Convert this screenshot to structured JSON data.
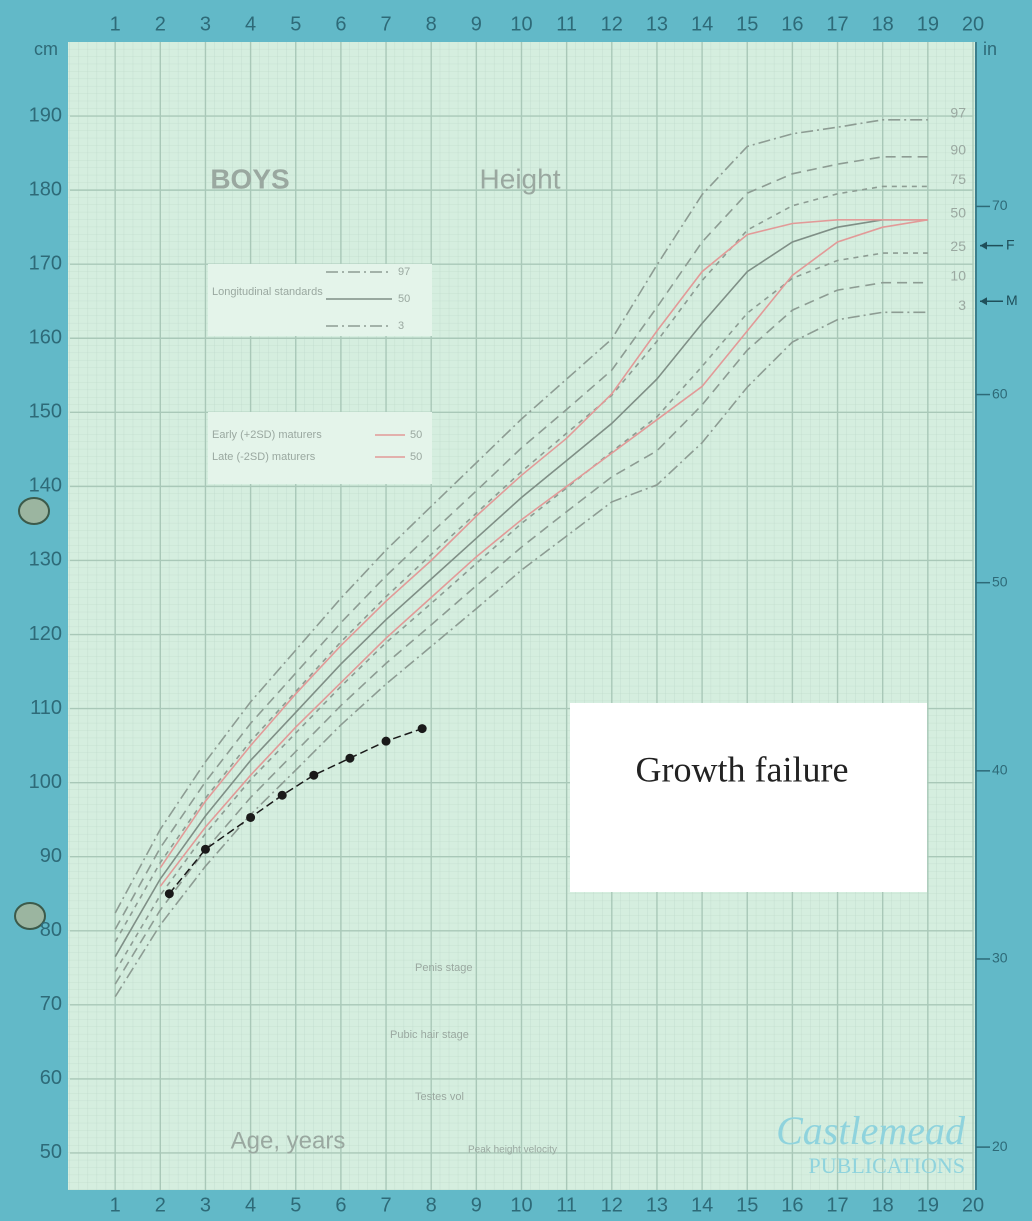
{
  "chart_data": {
    "type": "line",
    "title": "Height",
    "subtitle": "BOYS",
    "x_label": "Age, years",
    "y_label": "cm",
    "y2_label": "in",
    "xlim": [
      0,
      20
    ],
    "xticks": [
      1,
      2,
      3,
      4,
      5,
      6,
      7,
      8,
      9,
      10,
      11,
      12,
      13,
      14,
      15,
      16,
      17,
      18,
      19,
      20
    ],
    "ylim": [
      45,
      200
    ],
    "yticks": [
      50,
      60,
      70,
      80,
      90,
      100,
      110,
      120,
      130,
      140,
      150,
      160,
      170,
      180,
      190
    ],
    "y2lim": [
      17.72,
      78.74
    ],
    "y2ticks": [
      20,
      30,
      40,
      50,
      60,
      70
    ],
    "grid": true,
    "x": [
      1,
      2,
      3,
      4,
      5,
      6,
      7,
      8,
      9,
      10,
      11,
      12,
      13,
      14,
      15,
      16,
      17,
      18,
      19
    ],
    "series": [
      {
        "name": "97",
        "color": "#8d9c93",
        "dash": "dashdot",
        "values": [
          82.4,
          93.7,
          102.8,
          110.9,
          117.9,
          124.9,
          131.4,
          137.3,
          143.2,
          149.1,
          154.5,
          159.9,
          169.9,
          179.4,
          185.9,
          187.6,
          188.5,
          189.5,
          189.5
        ]
      },
      {
        "name": "90",
        "color": "#8d9c93",
        "dash": "dashed",
        "values": [
          80.2,
          91.2,
          100.1,
          108.0,
          114.8,
          121.6,
          127.9,
          133.7,
          139.4,
          145.2,
          150.4,
          155.7,
          164.2,
          173.0,
          179.6,
          182.2,
          183.5,
          184.5,
          184.5
        ]
      },
      {
        "name": "75",
        "color": "#8d9c93",
        "dash": "short",
        "values": [
          78.5,
          89.2,
          97.9,
          105.6,
          112.3,
          119.0,
          125.1,
          130.8,
          136.4,
          142.0,
          147.2,
          152.3,
          159.6,
          167.8,
          174.6,
          177.9,
          179.5,
          180.5,
          180.5
        ]
      },
      {
        "name": "50",
        "color": "#7f8f86",
        "dash": "solid",
        "values": [
          76.5,
          87,
          95.5,
          103,
          109.5,
          116,
          122,
          127.5,
          133,
          138.5,
          143.5,
          148.5,
          154.5,
          162,
          169,
          173,
          175,
          176,
          176
        ]
      },
      {
        "name": "25",
        "color": "#8d9c93",
        "dash": "short",
        "values": [
          74.5,
          84.8,
          93.1,
          100.4,
          106.7,
          113.0,
          118.9,
          124.2,
          129.6,
          135.0,
          139.8,
          144.7,
          149.4,
          156.2,
          163.4,
          168.1,
          170.5,
          171.5,
          171.5
        ]
      },
      {
        "name": "10",
        "color": "#8d9c93",
        "dash": "dashed",
        "values": [
          72.8,
          82.8,
          90.9,
          98.0,
          104.2,
          110.4,
          116.1,
          121.3,
          126.6,
          131.8,
          136.6,
          141.3,
          144.8,
          151.0,
          158.4,
          163.8,
          166.5,
          167.5,
          167.5
        ]
      },
      {
        "name": "3",
        "color": "#8d9c93",
        "dash": "dashdot",
        "values": [
          71.1,
          80.8,
          88.7,
          95.7,
          101.7,
          107.8,
          113.3,
          118.4,
          123.5,
          128.7,
          133.3,
          137.9,
          140.2,
          145.9,
          153.4,
          159.5,
          162.5,
          163.5,
          163.5
        ]
      },
      {
        "name": "Early (+2SD) maturers",
        "color": "#e29a98",
        "dash": "solid",
        "values": [
          null,
          88.5,
          97.5,
          105,
          112,
          118.5,
          124.5,
          130,
          136,
          141.5,
          146.5,
          152.5,
          161,
          169,
          174,
          175.5,
          176,
          176,
          176
        ]
      },
      {
        "name": "Late (-2SD) maturers",
        "color": "#e29a98",
        "dash": "solid",
        "values": [
          null,
          86,
          94,
          101,
          107.5,
          113.5,
          119.5,
          125,
          130.5,
          135.5,
          140,
          144.5,
          149,
          153.5,
          161,
          168.5,
          173,
          175,
          176
        ]
      }
    ],
    "points": {
      "color": "#1a1a1a",
      "x": [
        2.2,
        3,
        4,
        4.7,
        5.4,
        6.2,
        7,
        7.8
      ],
      "values": [
        85,
        91,
        95.3,
        98.3,
        101,
        103.3,
        105.6,
        107.3
      ]
    },
    "legend_title": "Longitudinal standards",
    "parent_marks": [
      {
        "label": "F",
        "value": 172.5
      },
      {
        "label": "M",
        "value": 165
      }
    ],
    "annotation": "Growth failure",
    "stage_labels": [
      "Penis stage",
      "Pubic hair stage",
      "Testes vol",
      "Peak height velocity"
    ],
    "publisher": [
      "Castlemead",
      "PUBLICATIONS"
    ]
  }
}
